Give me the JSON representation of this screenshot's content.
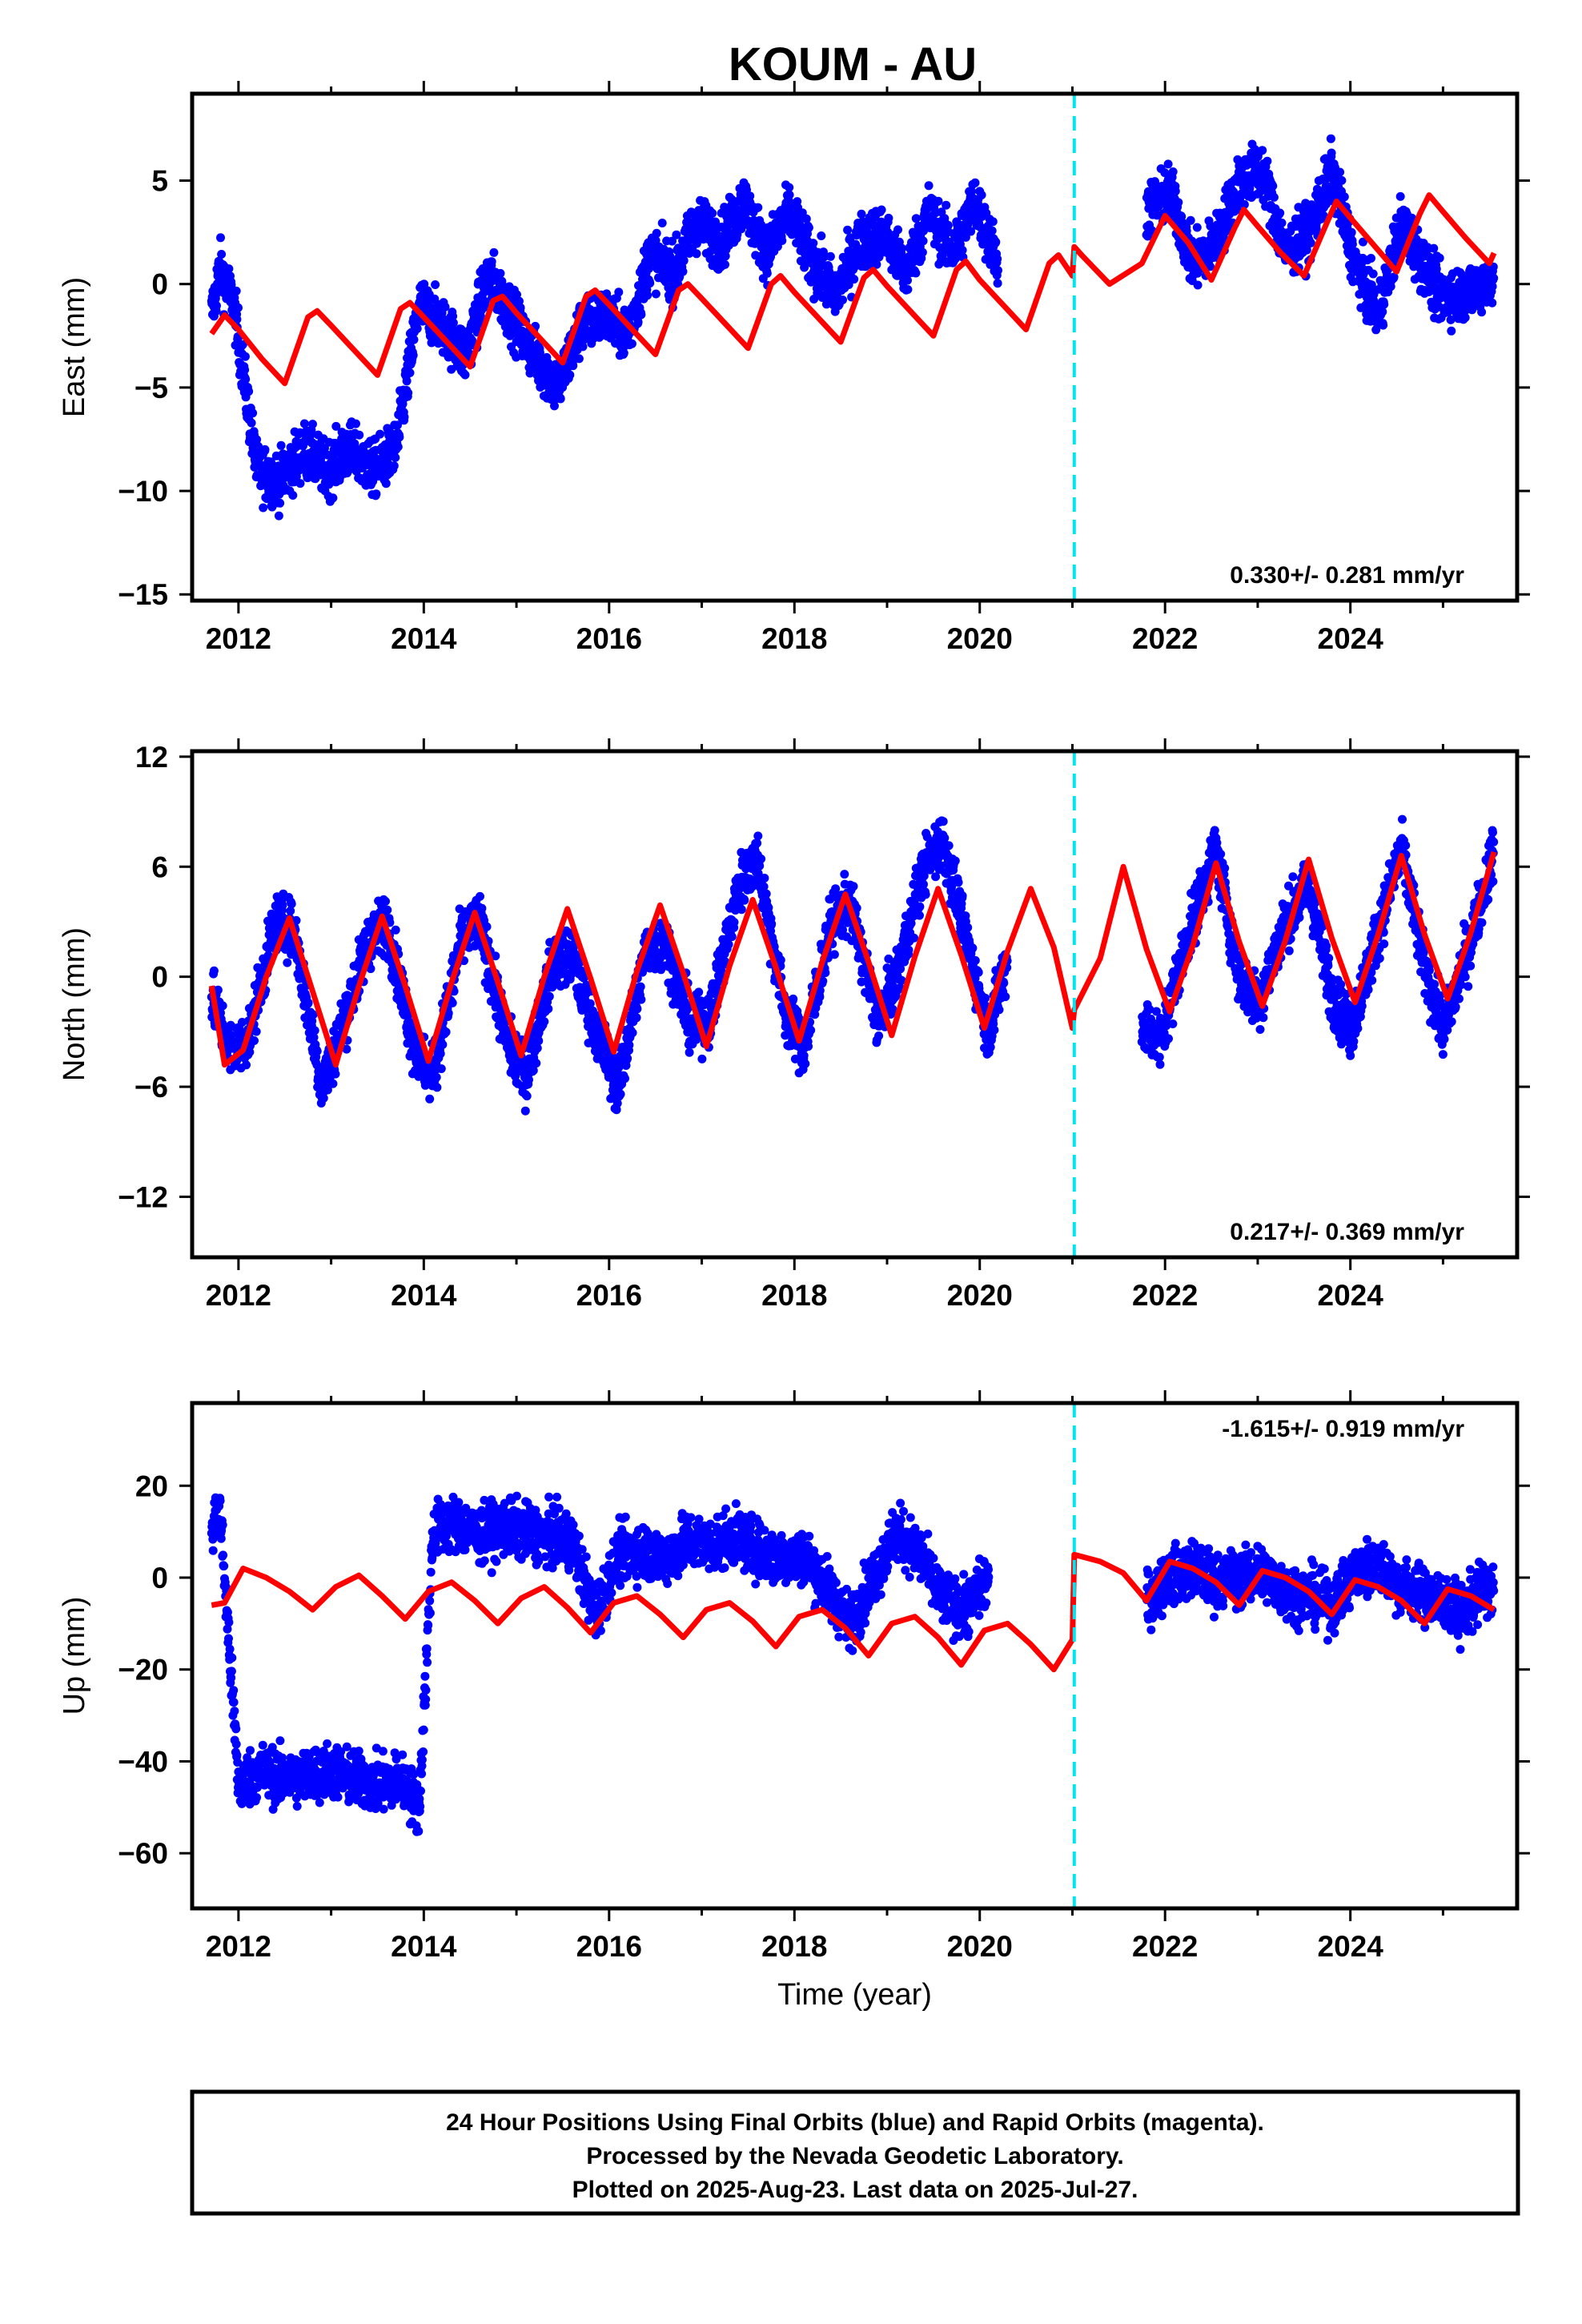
{
  "title": "KOUM - AU",
  "colors": {
    "data": "#0000ff",
    "model": "#ff0000",
    "break": "#00e5ee",
    "frame": "#000000"
  },
  "chart_data": [
    {
      "type": "scatter",
      "ylabel": "East (mm)",
      "xlabel": "",
      "xlim": [
        2011.5,
        2025.8
      ],
      "ylim": [
        -15.3,
        9.2
      ],
      "yticks": [
        5,
        0,
        -5,
        -10,
        -15
      ],
      "xticks": [
        2012,
        2014,
        2016,
        2018,
        2020,
        2022,
        2024
      ],
      "rate_text": "0.330+/- 0.281 mm/yr",
      "rate_position": "bottom-right",
      "break_x": 2021.02,
      "data_x": [
        2011.71,
        2011.8,
        2011.95,
        2012.2,
        2012.45,
        2012.7,
        2012.95,
        2013.2,
        2013.45,
        2013.7,
        2013.95,
        2014.2,
        2014.45,
        2014.7,
        2014.95,
        2015.2,
        2015.45,
        2015.7,
        2015.95,
        2016.2,
        2016.45,
        2016.7,
        2016.95,
        2017.2,
        2017.45,
        2017.7,
        2017.95,
        2018.2,
        2018.45,
        2018.7,
        2018.95,
        2019.2,
        2019.45,
        2019.7,
        2019.95,
        2020.2,
        2021.8,
        2022.05,
        2022.3,
        2022.55,
        2022.8,
        2023.05,
        2023.3,
        2023.55,
        2023.8,
        2024.05,
        2024.3,
        2024.55,
        2024.95,
        2025.2,
        2025.45,
        2025.55
      ],
      "data_y": [
        -1.5,
        0.8,
        -1.0,
        -9.0,
        -9.5,
        -8.0,
        -9.0,
        -8.0,
        -9.0,
        -8.0,
        -1.0,
        -2.0,
        -3.5,
        0.5,
        -1.5,
        -3.5,
        -5.0,
        -2.0,
        -1.5,
        -2.5,
        1.5,
        0.5,
        3.0,
        2.0,
        4.0,
        1.5,
        3.5,
        1.0,
        -0.5,
        2.0,
        2.5,
        0.5,
        3.5,
        1.5,
        4.0,
        1.0,
        3.5,
        4.5,
        1.0,
        2.0,
        5.0,
        5.5,
        1.5,
        2.5,
        5.5,
        1.0,
        -1.5,
        3.0,
        -0.5,
        -0.5,
        0.0,
        0.5
      ],
      "model_x": [
        2011.71,
        2011.85,
        2012.0,
        2012.25,
        2012.5,
        2012.75,
        2012.85,
        2013.0,
        2013.25,
        2013.5,
        2013.75,
        2013.85,
        2014.0,
        2014.25,
        2014.5,
        2014.75,
        2014.85,
        2015.0,
        2015.25,
        2015.5,
        2015.75,
        2015.85,
        2016.0,
        2016.25,
        2016.5,
        2016.75,
        2016.85,
        2017.0,
        2017.25,
        2017.5,
        2017.75,
        2017.85,
        2018.0,
        2018.25,
        2018.5,
        2018.75,
        2018.85,
        2019.0,
        2019.25,
        2019.5,
        2019.75,
        2019.85,
        2020.0,
        2020.25,
        2020.5,
        2020.75,
        2020.85,
        2021.0,
        2021.02,
        2021.1,
        2021.4,
        2021.75,
        2022.0,
        2022.25,
        2022.5,
        2022.75,
        2022.85,
        2023.0,
        2023.25,
        2023.5,
        2023.75,
        2023.85,
        2024.0,
        2024.25,
        2024.5,
        2024.75,
        2024.85,
        2025.0,
        2025.25,
        2025.5,
        2025.55
      ],
      "model_y": [
        -2.4,
        -1.5,
        -2.2,
        -3.6,
        -4.8,
        -1.6,
        -1.3,
        -2.0,
        -3.2,
        -4.4,
        -1.2,
        -0.9,
        -1.6,
        -2.8,
        -4.0,
        -0.8,
        -0.6,
        -1.4,
        -2.6,
        -3.8,
        -0.6,
        -0.3,
        -1.0,
        -2.2,
        -3.4,
        -0.3,
        0.0,
        -0.7,
        -1.9,
        -3.1,
        0.0,
        0.4,
        -0.4,
        -1.6,
        -2.8,
        0.3,
        0.7,
        -0.1,
        -1.3,
        -2.5,
        0.7,
        1.1,
        0.2,
        -1.0,
        -2.2,
        1.0,
        1.4,
        0.4,
        1.8,
        1.4,
        0.0,
        1.0,
        3.3,
        2.0,
        0.2,
        2.7,
        3.6,
        2.8,
        1.5,
        0.4,
        3.0,
        4.0,
        3.2,
        1.9,
        0.6,
        3.4,
        4.3,
        3.5,
        2.2,
        1.0,
        1.5
      ]
    },
    {
      "type": "scatter",
      "ylabel": "North (mm)",
      "xlabel": "",
      "xlim": [
        2011.5,
        2025.8
      ],
      "ylim": [
        -15.3,
        12.3
      ],
      "yticks": [
        12,
        6,
        0,
        -6,
        -12
      ],
      "xticks": [
        2012,
        2014,
        2016,
        2018,
        2020,
        2022,
        2024
      ],
      "rate_text": "0.217+/- 0.369 mm/yr",
      "rate_position": "bottom-right",
      "break_x": 2021.02,
      "data_x": [
        2011.71,
        2011.9,
        2012.1,
        2012.4,
        2012.6,
        2012.9,
        2013.1,
        2013.4,
        2013.6,
        2013.9,
        2014.1,
        2014.4,
        2014.6,
        2014.9,
        2015.1,
        2015.4,
        2015.6,
        2015.9,
        2016.1,
        2016.4,
        2016.6,
        2016.9,
        2017.1,
        2017.4,
        2017.6,
        2017.9,
        2018.1,
        2018.4,
        2018.6,
        2018.9,
        2019.1,
        2019.4,
        2019.6,
        2019.9,
        2020.1,
        2020.3,
        2021.75,
        2021.95,
        2022.2,
        2022.55,
        2022.8,
        2023.0,
        2023.3,
        2023.55,
        2023.8,
        2024.0,
        2024.3,
        2024.55,
        2024.8,
        2025.0,
        2025.3,
        2025.55
      ],
      "data_y": [
        -1.0,
        -4.0,
        -3.5,
        3.0,
        2.5,
        -6.0,
        -3.0,
        2.0,
        3.0,
        -4.0,
        -5.5,
        2.0,
        3.0,
        -3.5,
        -5.5,
        1.0,
        1.0,
        -3.5,
        -6.0,
        1.5,
        2.0,
        -3.0,
        -2.0,
        5.0,
        6.5,
        -2.0,
        -4.0,
        3.0,
        4.0,
        -2.5,
        0.0,
        6.0,
        7.5,
        1.0,
        -3.0,
        1.0,
        -2.5,
        -3.5,
        1.5,
        7.0,
        0.0,
        -1.5,
        3.0,
        5.0,
        -1.0,
        -3.0,
        2.5,
        7.0,
        0.5,
        -3.0,
        2.0,
        7.0
      ],
      "model_x": [
        2011.71,
        2011.85,
        2012.05,
        2012.3,
        2012.55,
        2012.8,
        2013.05,
        2013.3,
        2013.55,
        2013.8,
        2014.05,
        2014.3,
        2014.55,
        2014.8,
        2015.05,
        2015.3,
        2015.55,
        2015.8,
        2016.05,
        2016.3,
        2016.55,
        2016.8,
        2017.05,
        2017.3,
        2017.55,
        2017.8,
        2018.05,
        2018.3,
        2018.55,
        2018.8,
        2019.05,
        2019.3,
        2019.55,
        2019.8,
        2020.05,
        2020.3,
        2020.55,
        2020.8,
        2021.0,
        2021.02,
        2021.3,
        2021.55,
        2021.8,
        2022.05,
        2022.3,
        2022.55,
        2022.8,
        2023.05,
        2023.3,
        2023.55,
        2023.8,
        2024.05,
        2024.3,
        2024.55,
        2024.8,
        2025.05,
        2025.3,
        2025.55
      ],
      "model_y": [
        -0.5,
        -4.8,
        -4.0,
        0.0,
        3.2,
        -0.8,
        -4.8,
        -0.5,
        3.3,
        -0.5,
        -4.6,
        -0.3,
        3.5,
        -0.3,
        -4.3,
        0.0,
        3.7,
        -0.1,
        -4.1,
        0.3,
        3.9,
        0.2,
        -3.8,
        0.6,
        4.2,
        0.5,
        -3.5,
        0.8,
        4.5,
        0.8,
        -3.2,
        1.1,
        4.8,
        1.2,
        -2.8,
        1.4,
        4.8,
        1.6,
        -2.8,
        -1.8,
        1.0,
        6.0,
        1.5,
        -1.9,
        1.7,
        6.2,
        1.9,
        -1.6,
        2.0,
        6.4,
        2.1,
        -1.4,
        2.3,
        6.6,
        2.3,
        -1.2,
        2.4,
        6.8
      ]
    },
    {
      "type": "scatter",
      "ylabel": "Up (mm)",
      "xlabel": "Time (year)",
      "xlim": [
        2011.5,
        2025.8
      ],
      "ylim": [
        -72.0,
        38.0
      ],
      "yticks": [
        20,
        0,
        -20,
        -40,
        -60
      ],
      "xticks": [
        2012,
        2014,
        2016,
        2018,
        2020,
        2022,
        2024
      ],
      "rate_text": "-1.615+/- 0.919 mm/yr",
      "rate_position": "top-right",
      "break_x": 2021.02,
      "data_x": [
        2011.71,
        2011.8,
        2012.0,
        2012.25,
        2012.5,
        2012.75,
        2013.0,
        2013.25,
        2013.5,
        2013.75,
        2013.95,
        2014.1,
        2014.35,
        2014.6,
        2014.85,
        2015.1,
        2015.35,
        2015.6,
        2015.85,
        2016.1,
        2016.35,
        2016.6,
        2016.85,
        2017.1,
        2017.35,
        2017.6,
        2017.85,
        2018.1,
        2018.35,
        2018.6,
        2018.85,
        2019.1,
        2019.35,
        2019.6,
        2019.85,
        2020.1,
        2021.8,
        2022.05,
        2022.3,
        2022.55,
        2022.8,
        2023.05,
        2023.3,
        2023.55,
        2023.8,
        2024.05,
        2024.3,
        2024.55,
        2024.95,
        2025.2,
        2025.45,
        2025.55
      ],
      "data_y": [
        10.0,
        15.0,
        -45.0,
        -42.0,
        -44.0,
        -43.0,
        -42.0,
        -44.0,
        -45.0,
        -44.0,
        -50.0,
        10.0,
        12.0,
        9.0,
        11.0,
        10.0,
        9.0,
        8.0,
        -8.0,
        5.0,
        6.0,
        4.0,
        8.0,
        7.0,
        9.0,
        6.0,
        4.0,
        5.0,
        -2.0,
        -10.0,
        0.0,
        10.0,
        5.0,
        -5.0,
        -7.0,
        0.0,
        -5.0,
        0.0,
        2.0,
        -1.0,
        0.0,
        1.0,
        -3.0,
        -4.0,
        -6.0,
        1.0,
        3.0,
        -2.0,
        -5.0,
        -8.0,
        -2.0,
        -3.0
      ],
      "model_x": [
        2011.71,
        2011.85,
        2012.05,
        2012.3,
        2012.55,
        2012.8,
        2013.05,
        2013.3,
        2013.55,
        2013.8,
        2014.05,
        2014.3,
        2014.55,
        2014.8,
        2015.05,
        2015.3,
        2015.55,
        2015.8,
        2016.05,
        2016.3,
        2016.55,
        2016.8,
        2017.05,
        2017.3,
        2017.55,
        2017.8,
        2018.05,
        2018.3,
        2018.55,
        2018.8,
        2019.05,
        2019.3,
        2019.55,
        2019.8,
        2020.05,
        2020.3,
        2020.55,
        2020.8,
        2021.0,
        2021.02,
        2021.3,
        2021.55,
        2021.8,
        2022.05,
        2022.3,
        2022.55,
        2022.8,
        2023.05,
        2023.3,
        2023.55,
        2023.8,
        2024.05,
        2024.3,
        2024.55,
        2024.8,
        2025.05,
        2025.3,
        2025.55
      ],
      "model_y": [
        -6.0,
        -5.5,
        2.0,
        0.0,
        -3.0,
        -7.0,
        -2.0,
        0.5,
        -4.0,
        -9.0,
        -3.0,
        -1.0,
        -5.0,
        -10.0,
        -4.5,
        -2.0,
        -6.5,
        -12.0,
        -5.5,
        -4.0,
        -8.0,
        -13.0,
        -7.0,
        -5.5,
        -9.5,
        -15.0,
        -8.5,
        -7.0,
        -11.0,
        -17.0,
        -10.0,
        -8.5,
        -13.0,
        -19.0,
        -11.5,
        -10.0,
        -14.5,
        -20.0,
        -13.5,
        5.0,
        3.5,
        1.0,
        -5.0,
        3.5,
        2.0,
        -1.0,
        -6.0,
        1.5,
        0.0,
        -3.0,
        -8.0,
        -0.5,
        -2.0,
        -5.0,
        -10.0,
        -2.5,
        -4.0,
        -7.0
      ]
    }
  ],
  "footer": {
    "line1": "24 Hour Positions Using Final Orbits (blue) and Rapid Orbits (magenta).",
    "line2": "Processed by the Nevada Geodetic Laboratory.",
    "line3": "Plotted on 2025-Aug-23. Last data on 2025-Jul-27."
  }
}
